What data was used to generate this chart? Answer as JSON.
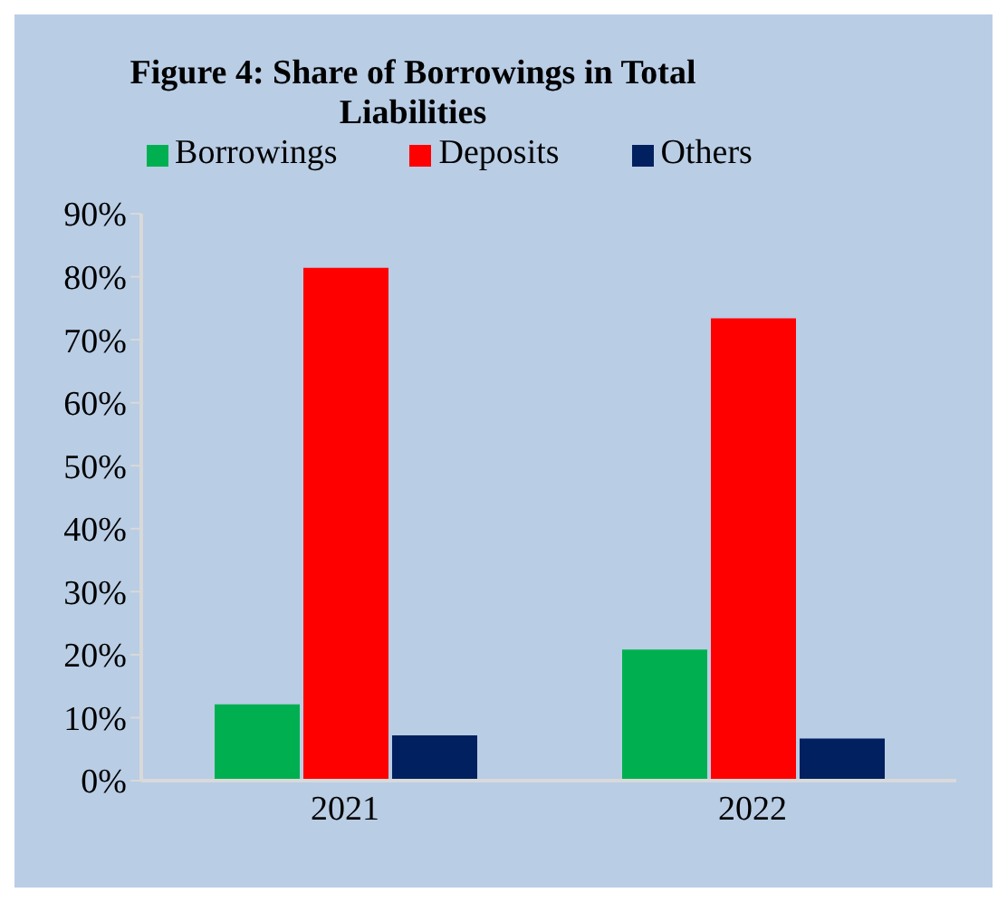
{
  "chart_data": {
    "type": "bar",
    "title": "Figure 4: Share of Borrowings in Total Liabilities",
    "categories": [
      "2021",
      "2022"
    ],
    "series": [
      {
        "name": "Borrowings",
        "color": "#00b050",
        "values": [
          12.1,
          20.8
        ]
      },
      {
        "name": "Deposits",
        "color": "#ff0000",
        "values": [
          81.4,
          73.4
        ]
      },
      {
        "name": "Others",
        "color": "#002060",
        "values": [
          7.2,
          6.7
        ]
      }
    ],
    "ylim": [
      0,
      90
    ],
    "yticks": [
      {
        "value": 0,
        "label": "0%"
      },
      {
        "value": 10,
        "label": "10%"
      },
      {
        "value": 20,
        "label": "20%"
      },
      {
        "value": 30,
        "label": "30%"
      },
      {
        "value": 40,
        "label": "40%"
      },
      {
        "value": 50,
        "label": "50%"
      },
      {
        "value": 60,
        "label": "60%"
      },
      {
        "value": 70,
        "label": "70%"
      },
      {
        "value": 80,
        "label": "80%"
      },
      {
        "value": 90,
        "label": "90%"
      }
    ],
    "grid": false,
    "legend": "top"
  }
}
